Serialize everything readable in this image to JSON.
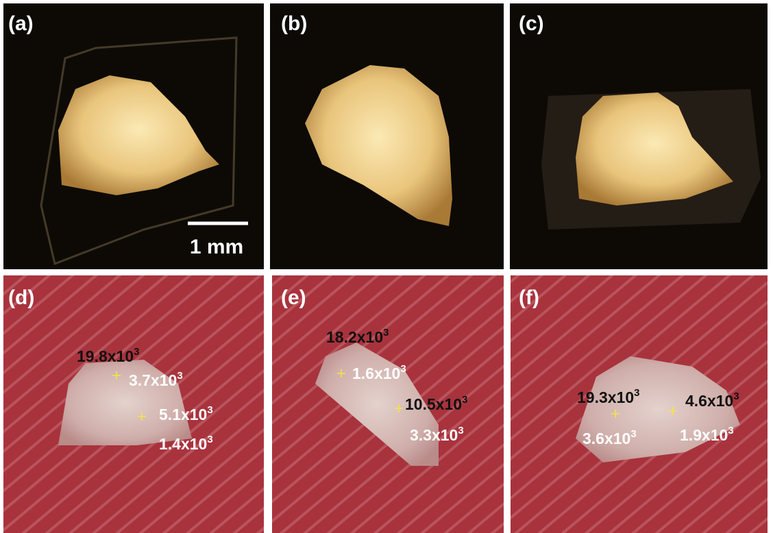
{
  "panels": [
    {
      "label": "(a)"
    },
    {
      "label": "(b)"
    },
    {
      "label": "(c)"
    },
    {
      "label": "(d)",
      "annotations": [
        {
          "text": "19.8x10",
          "exponent": "3"
        },
        {
          "text": "3.7x10",
          "exponent": "3"
        },
        {
          "text": "5.1x10",
          "exponent": "3"
        },
        {
          "text": "1.4x10",
          "exponent": "3"
        }
      ]
    },
    {
      "label": "(e)",
      "annotations": [
        {
          "text": "18.2x10",
          "exponent": "3"
        },
        {
          "text": "1.6x10",
          "exponent": "3"
        },
        {
          "text": "10.5x10",
          "exponent": "3"
        },
        {
          "text": "3.3x10",
          "exponent": "3"
        }
      ]
    },
    {
      "label": "(f)",
      "annotations": [
        {
          "text": "19.3x10",
          "exponent": "3"
        },
        {
          "text": "4.6x10",
          "exponent": "3"
        },
        {
          "text": "3.6x10",
          "exponent": "3"
        },
        {
          "text": "1.9x10",
          "exponent": "3"
        }
      ]
    }
  ],
  "scale_bar": {
    "label": "1 mm"
  }
}
